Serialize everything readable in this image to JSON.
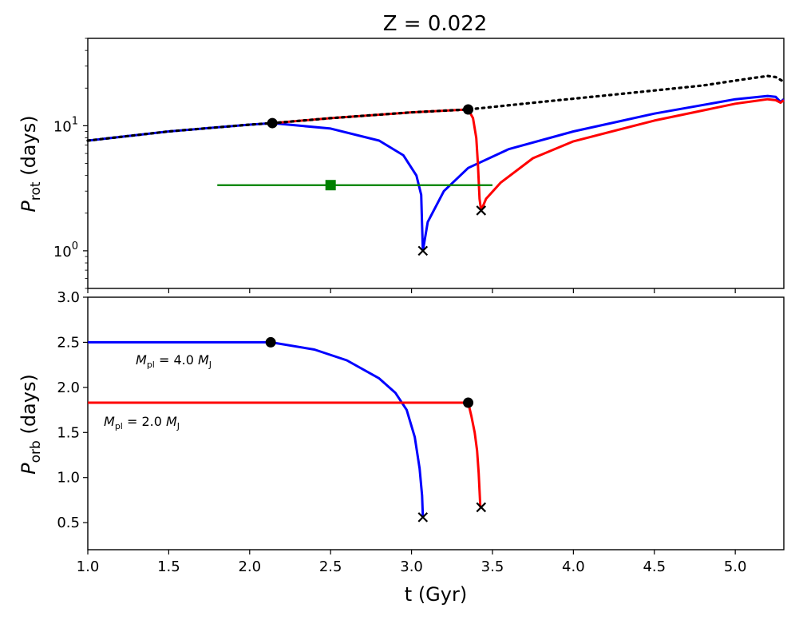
{
  "figure": {
    "title": "Z = 0.022"
  },
  "colors": {
    "blue": "#0000ff",
    "red": "#ff0000",
    "green": "#008000",
    "black": "#000000"
  },
  "chart_data": [
    {
      "panel": "top",
      "type": "line",
      "title": "Z = 0.022",
      "ylabel": {
        "var": "P",
        "sub": "rot",
        "rest": " (days)"
      },
      "yscale": "log",
      "xlim": [
        1.0,
        5.3
      ],
      "ylim": [
        0.5,
        50
      ],
      "yticks": [
        {
          "base": "10",
          "exp": "0",
          "value": 1
        },
        {
          "base": "10",
          "exp": "1",
          "value": 10
        }
      ],
      "series": [
        {
          "id": "no-planet",
          "color": "#000000",
          "style": "dotted",
          "x": [
            1.0,
            1.5,
            2.0,
            2.14,
            2.5,
            3.0,
            3.35,
            3.8,
            4.3,
            4.8,
            5.1,
            5.2,
            5.25,
            5.3
          ],
          "y": [
            7.6,
            9.0,
            10.2,
            10.5,
            11.5,
            12.8,
            13.5,
            15.5,
            18.0,
            21.0,
            24.0,
            25.0,
            24.5,
            22.5
          ]
        },
        {
          "id": "mpl-4",
          "color": "#0000ff",
          "style": "solid",
          "x": [
            1.0,
            1.5,
            2.0,
            2.14,
            2.5,
            2.8,
            2.95,
            3.03,
            3.06,
            3.065,
            3.07,
            3.1,
            3.2,
            3.35,
            3.6,
            4.0,
            4.5,
            5.0,
            5.2,
            5.25,
            5.28,
            5.3
          ],
          "y": [
            7.6,
            9.0,
            10.2,
            10.5,
            9.5,
            7.6,
            5.8,
            4.0,
            2.8,
            1.6,
            1.0,
            1.7,
            3.0,
            4.6,
            6.5,
            9.0,
            12.5,
            16.3,
            17.3,
            17.0,
            15.5,
            16.3
          ]
        },
        {
          "id": "mpl-2",
          "color": "#ff0000",
          "style": "solid",
          "x": [
            2.14,
            2.5,
            3.0,
            3.35,
            3.38,
            3.4,
            3.41,
            3.42,
            3.43,
            3.46,
            3.55,
            3.75,
            4.0,
            4.5,
            5.0,
            5.2,
            5.25,
            5.28,
            5.3
          ],
          "y": [
            10.5,
            11.5,
            12.8,
            13.5,
            11.5,
            8.0,
            5.0,
            2.6,
            2.1,
            2.6,
            3.5,
            5.5,
            7.5,
            11.0,
            15.0,
            16.3,
            16.0,
            15.3,
            16.0
          ]
        }
      ],
      "observation": {
        "x": 2.5,
        "y": 3.35,
        "xerr": [
          1.8,
          3.5
        ],
        "color": "#008000"
      },
      "events": [
        {
          "x": 2.14,
          "y": 10.5,
          "marker": "dot"
        },
        {
          "x": 3.35,
          "y": 13.5,
          "marker": "dot"
        },
        {
          "x": 3.07,
          "y": 1.0,
          "marker": "x"
        },
        {
          "x": 3.43,
          "y": 2.1,
          "marker": "x"
        }
      ]
    },
    {
      "panel": "bottom",
      "type": "line",
      "xlabel": "t (Gyr)",
      "ylabel": {
        "var": "P",
        "sub": "orb",
        "rest": " (days)"
      },
      "xlim": [
        1.0,
        5.3
      ],
      "ylim": [
        0.2,
        3.0
      ],
      "xticks": [
        "1.0",
        "1.5",
        "2.0",
        "2.5",
        "3.0",
        "3.5",
        "4.0",
        "4.5",
        "5.0"
      ],
      "yticks": [
        "0.5",
        "1.0",
        "1.5",
        "2.0",
        "2.5",
        "3.0"
      ],
      "series": [
        {
          "id": "mpl-4",
          "color": "#0000ff",
          "x": [
            1.0,
            2.13,
            2.4,
            2.6,
            2.8,
            2.9,
            2.97,
            3.02,
            3.05,
            3.065,
            3.07
          ],
          "y": [
            2.5,
            2.5,
            2.42,
            2.3,
            2.1,
            1.94,
            1.75,
            1.45,
            1.1,
            0.8,
            0.56
          ]
        },
        {
          "id": "mpl-2",
          "color": "#ff0000",
          "x": [
            1.0,
            3.35,
            3.37,
            3.39,
            3.405,
            3.415,
            3.42,
            3.425
          ],
          "y": [
            1.83,
            1.83,
            1.68,
            1.5,
            1.3,
            1.05,
            0.85,
            0.67
          ]
        }
      ],
      "events": [
        {
          "x": 2.13,
          "y": 2.5,
          "marker": "dot"
        },
        {
          "x": 3.35,
          "y": 1.83,
          "marker": "dot"
        },
        {
          "x": 3.07,
          "y": 0.56,
          "marker": "x"
        },
        {
          "x": 3.43,
          "y": 0.67,
          "marker": "x"
        }
      ],
      "annotations": [
        {
          "series": "mpl-4",
          "text_var": "M",
          "text_sub": "pl",
          "text_mid": " = 4.0 ",
          "text_unit": "M",
          "text_unit_sub": "J",
          "color": "#0000ff",
          "x": 1.3,
          "y": 2.26
        },
        {
          "series": "mpl-2",
          "text_var": "M",
          "text_sub": "pl",
          "text_mid": " = 2.0 ",
          "text_unit": "M",
          "text_unit_sub": "J",
          "color": "#ff0000",
          "x": 1.1,
          "y": 1.56
        }
      ]
    }
  ]
}
